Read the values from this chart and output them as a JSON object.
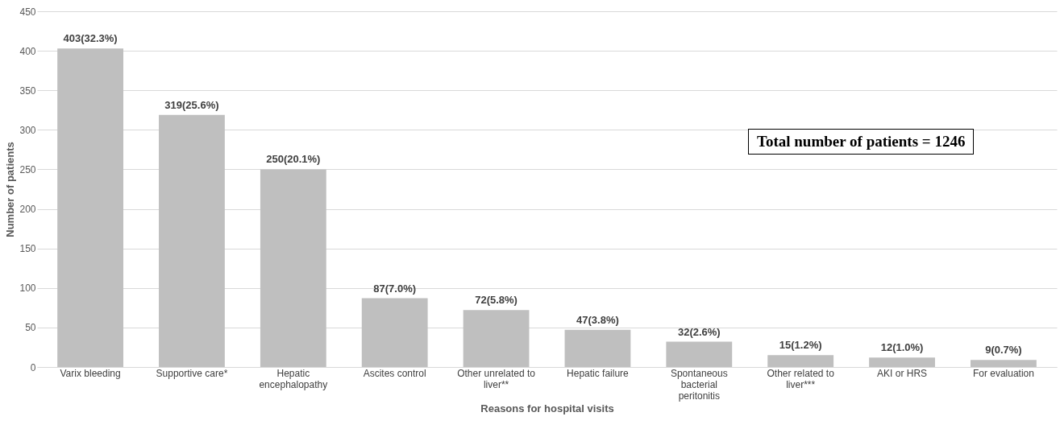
{
  "chart_data": {
    "type": "bar",
    "xlabel": "Reasons for hospital visits",
    "ylabel": "Number of patients",
    "categories": [
      "Varix bleeding",
      "Supportive care*",
      "Hepatic encephalopathy",
      "Ascites control",
      "Other unrelated to liver**",
      "Hepatic failure",
      "Spontaneous bacterial peritonitis",
      "Other related to liver***",
      "AKI or HRS",
      "For evaluation"
    ],
    "values": [
      403,
      319,
      250,
      87,
      72,
      47,
      32,
      15,
      12,
      9
    ],
    "value_labels": [
      "403(32.3%)",
      "319(25.6%)",
      "250(20.1%)",
      "87(7.0%)",
      "72(5.8%)",
      "47(3.8%)",
      "32(2.6%)",
      "15(1.2%)",
      "12(1.0%)",
      "9(0.7%)"
    ],
    "color": "#bfbfbf",
    "ylim": [
      0,
      450
    ],
    "yticks": [
      0,
      50,
      100,
      150,
      200,
      250,
      300,
      350,
      400,
      450
    ],
    "grid": "y",
    "annotations": [
      "Total number of patients = 1246"
    ]
  }
}
